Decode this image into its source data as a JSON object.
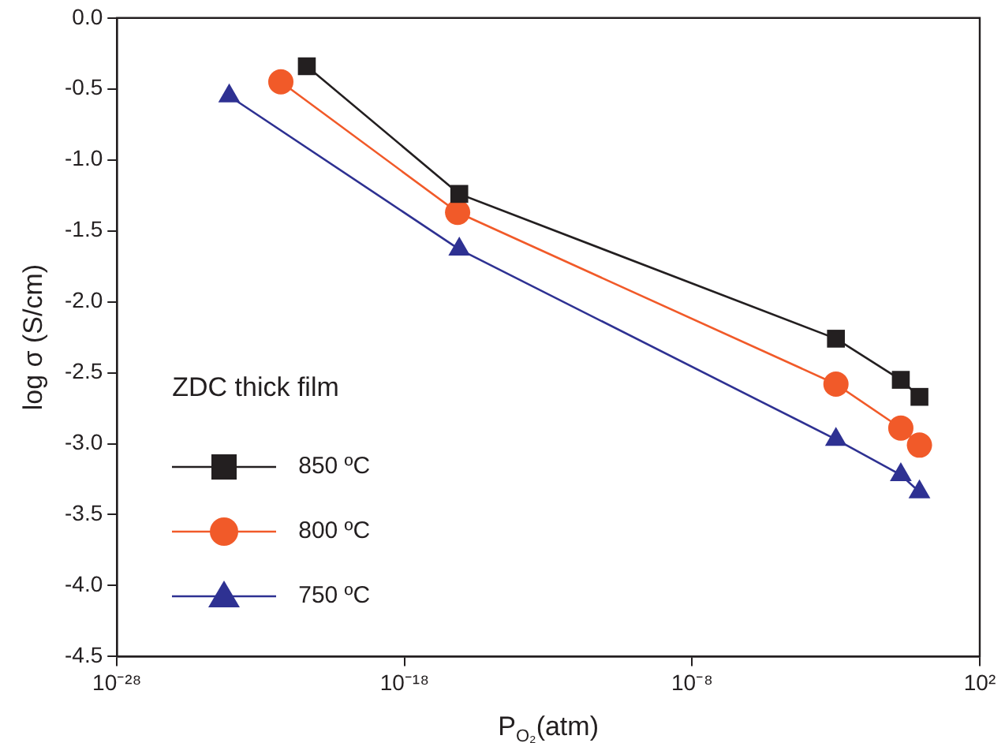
{
  "chart_data": {
    "type": "line",
    "xlabel": "P$_{O₂}$(atm)",
    "ylabel": "log σ (S/cm)",
    "log": "x",
    "legend_title": "ZDC thick film",
    "legend": "bottom left",
    "grid": false,
    "xlim": [
      1e-28,
      100.0
    ],
    "xticks": [
      {
        "value": 1e-28,
        "label": "10⁻²⁸"
      },
      {
        "value": 1e-18,
        "label": "10⁻¹⁸"
      },
      {
        "value": 1e-08,
        "label": "10⁻⁸"
      },
      {
        "value": 100,
        "label": "10²"
      }
    ],
    "ylim": [
      -4.5,
      0
    ],
    "yticks": [
      {
        "value": -4.5,
        "label": "-4.5"
      },
      {
        "value": -4,
        "label": "-4.0"
      },
      {
        "value": -3.5,
        "label": "-3.5"
      },
      {
        "value": -3,
        "label": "-3.0"
      },
      {
        "value": -2.5,
        "label": "-2.5"
      },
      {
        "value": -2,
        "label": "-2.0"
      },
      {
        "value": -1.5,
        "label": "-1.5"
      },
      {
        "value": -1,
        "label": "-1.0"
      },
      {
        "value": -0.5,
        "label": "-0.5"
      },
      {
        "value": 0,
        "label": "0.0"
      }
    ],
    "series": [
      {
        "name": "850 ºC",
        "color": "#231f20",
        "marker": "square",
        "x": [
          4e-22,
          8e-17,
          0.001,
          0.18,
          0.8
        ],
        "values": [
          -0.34,
          -1.24,
          -2.26,
          -2.55,
          -2.67
        ]
      },
      {
        "name": "800 ºC",
        "color": "#f15a29",
        "marker": "circle",
        "x": [
          5e-23,
          7e-17,
          0.001,
          0.18,
          0.8
        ],
        "values": [
          -0.45,
          -1.37,
          -2.58,
          -2.89,
          -3.01
        ]
      },
      {
        "name": "750 ºC",
        "color": "#2e3192",
        "marker": "triangle",
        "x": [
          8e-25,
          8e-17,
          0.001,
          0.18,
          0.8
        ],
        "values": [
          -0.55,
          -1.63,
          -2.97,
          -3.22,
          -3.34
        ]
      }
    ]
  }
}
